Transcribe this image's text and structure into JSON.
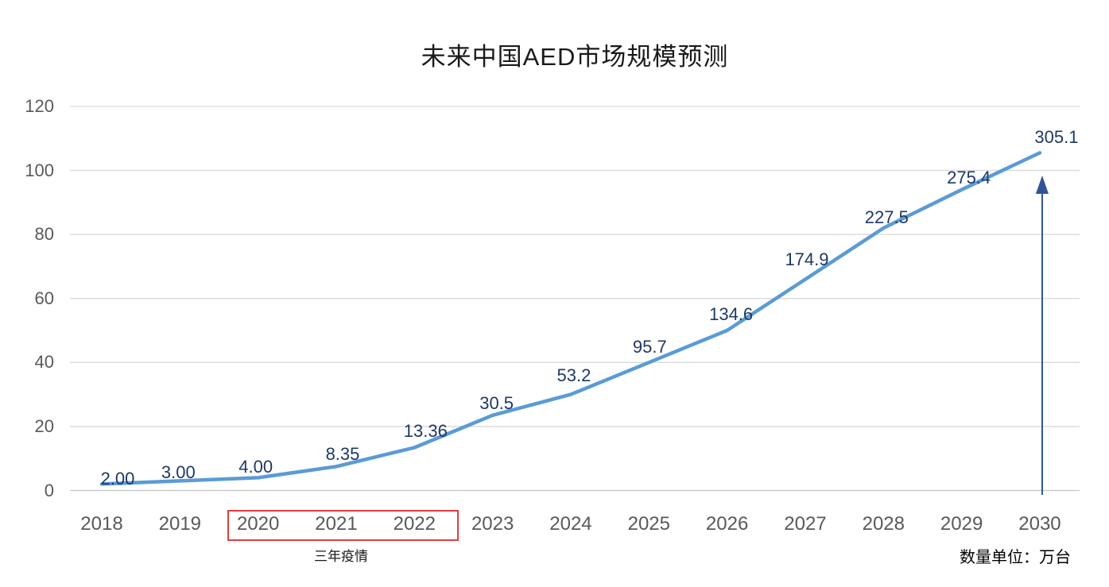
{
  "page": {
    "title": "未来中国AED市场规模预测",
    "unit_note": "数量单位：万台",
    "pandemic_label": "三年疫情"
  },
  "chart_data": {
    "type": "line",
    "title": "未来中国AED市场规模预测",
    "categories": [
      "2018",
      "2019",
      "2020",
      "2021",
      "2022",
      "2023",
      "2024",
      "2025",
      "2026",
      "2027",
      "2028",
      "2029",
      "2030"
    ],
    "series": [
      {
        "name": "中国AED市场规模",
        "values": [
          2.0,
          3.0,
          4.0,
          8.35,
          13.36,
          30.5,
          53.2,
          95.7,
          134.6,
          174.9,
          227.5,
          275.4,
          305.1
        ]
      }
    ],
    "data_labels": [
      "2.00",
      "3.00",
      "4.00",
      "8.35",
      "13.36",
      "30.5",
      "53.2",
      "95.7",
      "134.6",
      "174.9",
      "227.5",
      "275.4",
      "305.1"
    ],
    "plotted_axis_values": [
      2,
      3,
      4,
      7.5,
      13.4,
      23.5,
      30,
      40,
      50,
      66,
      82,
      94,
      105.5
    ],
    "label_dx": [
      20,
      -2,
      -3,
      8,
      14,
      5,
      4,
      1,
      5,
      2,
      4,
      9,
      21
    ],
    "label_dy": [
      -6,
      -10,
      -13,
      -15,
      -21,
      -15,
      -24,
      -19,
      -20,
      -25,
      -13,
      -15,
      -19
    ],
    "y_ticks": [
      0,
      20,
      40,
      60,
      80,
      100,
      120
    ],
    "ylim": [
      0,
      120
    ],
    "xlabel": "",
    "ylabel": "",
    "grid": "horizontal",
    "legend": "none",
    "colors": {
      "line": "#5b9bd5",
      "data_label": "#1f3864",
      "axis_label": "#595959",
      "gridline": "#d9d9d9",
      "baseline": "#c6c6c6",
      "arrow": "#2f5496",
      "annotation_box": "#e23c3c",
      "title": "#1a1a1a"
    },
    "annotations": {
      "pandemic_box": {
        "label": "三年疫情",
        "years": [
          "2020",
          "2021",
          "2022"
        ]
      },
      "growth_arrow_at": "2030",
      "unit_note": "数量单位：万台"
    }
  }
}
